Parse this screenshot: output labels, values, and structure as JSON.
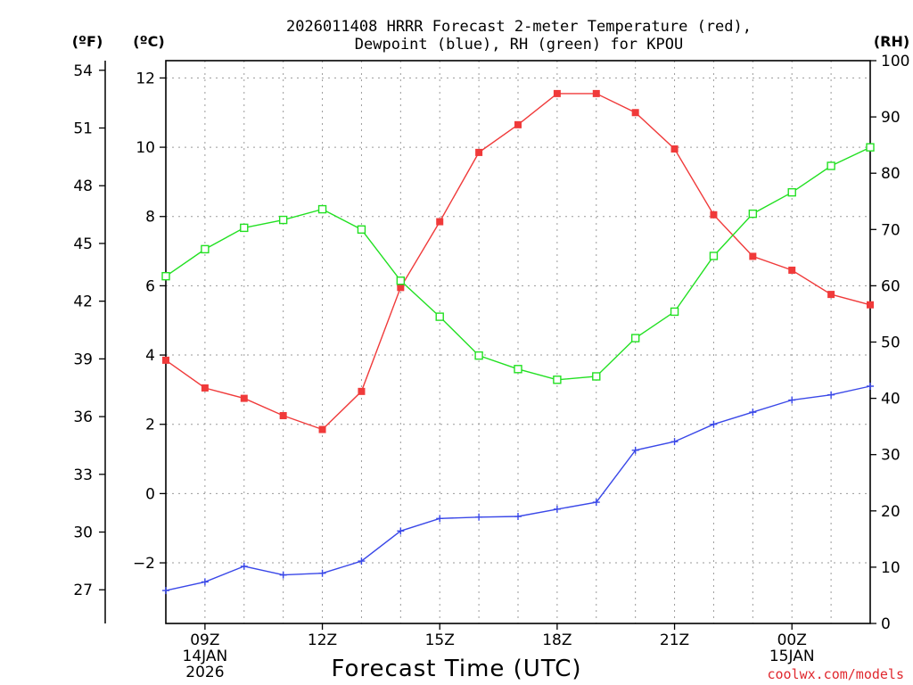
{
  "chart_data": {
    "type": "line",
    "title_line1": "2026011408 HRRR Forecast 2-meter Temperature (red),",
    "title_line2": "Dewpoint (blue), RH (green) for KPOU",
    "xlabel": "Forecast Time (UTC)",
    "credit": "coolwx.com/models",
    "units": {
      "fahrenheit": "(ºF)",
      "celsius": "(ºC)",
      "rh": "(RH)"
    },
    "hours": [
      8,
      9,
      10,
      11,
      12,
      13,
      14,
      15,
      16,
      17,
      18,
      19,
      20,
      21,
      22,
      23,
      24,
      25,
      26
    ],
    "xlim": [
      8,
      26
    ],
    "x_ticks": [
      {
        "hour": 9,
        "label": "09Z",
        "date": "14JAN",
        "year": "2026"
      },
      {
        "hour": 12,
        "label": "12Z"
      },
      {
        "hour": 15,
        "label": "15Z"
      },
      {
        "hour": 18,
        "label": "18Z"
      },
      {
        "hour": 21,
        "label": "21Z"
      },
      {
        "hour": 24,
        "label": "00Z",
        "date": "15JAN"
      }
    ],
    "y_left_celsius": {
      "ylim": [
        -3.75,
        12.5
      ],
      "ticks": [
        -2,
        0,
        2,
        4,
        6,
        8,
        10,
        12
      ],
      "tick_labels": [
        "−2",
        "0",
        "2",
        "4",
        "6",
        "8",
        "10",
        "12"
      ]
    },
    "y_left_fahrenheit": {
      "ylim": [
        25.25,
        54.5
      ],
      "ticks": [
        27,
        30,
        33,
        36,
        39,
        42,
        45,
        48,
        51,
        54
      ]
    },
    "y_right_rh": {
      "ylim": [
        0,
        100
      ],
      "ticks": [
        0,
        10,
        20,
        30,
        40,
        50,
        60,
        70,
        80,
        90,
        100
      ]
    },
    "series": [
      {
        "name": "Temperature",
        "axis": "celsius",
        "color": "#f03a3a",
        "marker": "filled-square",
        "values": [
          3.85,
          3.05,
          2.75,
          2.25,
          1.85,
          2.95,
          5.95,
          7.85,
          9.85,
          10.65,
          11.55,
          11.55,
          11.0,
          9.95,
          8.05,
          6.85,
          6.45,
          5.75,
          5.45
        ]
      },
      {
        "name": "Dewpoint",
        "axis": "celsius",
        "color": "#3a48e8",
        "marker": "plus",
        "values": [
          -2.8,
          -2.55,
          -2.1,
          -2.35,
          -2.3,
          -1.95,
          -1.08,
          -0.72,
          -0.68,
          -0.66,
          -0.45,
          -0.25,
          1.25,
          1.5,
          2.0,
          2.35,
          2.7,
          2.85,
          3.1
        ]
      },
      {
        "name": "RH",
        "axis": "rh",
        "color": "#22e022",
        "marker": "open-square",
        "values": [
          61.7,
          66.5,
          70.3,
          71.7,
          73.6,
          70.0,
          60.9,
          54.5,
          47.6,
          45.2,
          43.3,
          43.9,
          50.7,
          55.4,
          65.3,
          72.8,
          76.6,
          81.3,
          84.6
        ]
      }
    ]
  }
}
